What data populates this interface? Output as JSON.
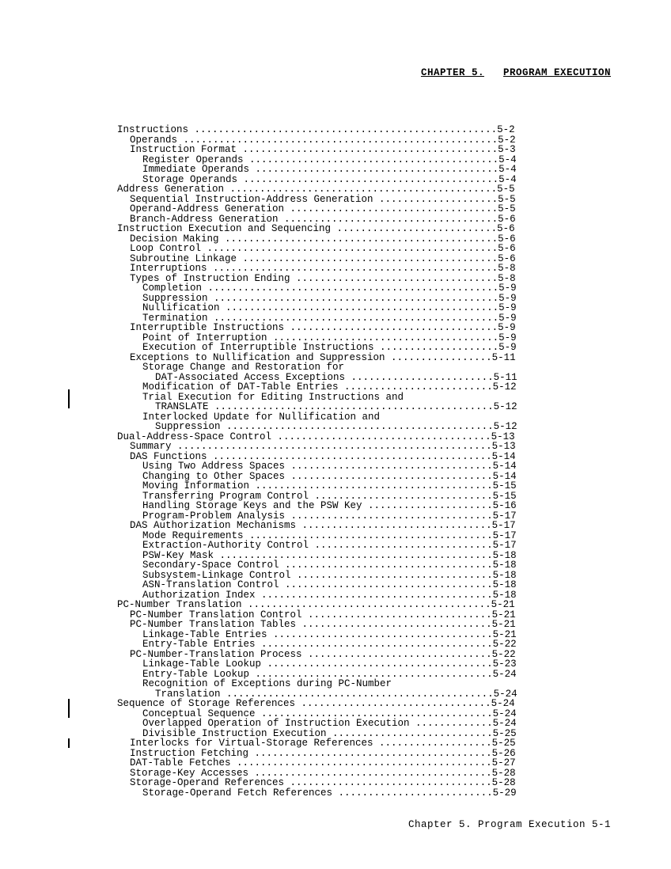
{
  "header": {
    "chapter_label": "CHAPTER 5.",
    "chapter_title": "PROGRAM EXECUTION"
  },
  "toc": {
    "line_width_chars": 67,
    "entries": [
      {
        "label": "Instructions",
        "page": "5-2",
        "level": 0
      },
      {
        "label": "Operands",
        "page": "5-2",
        "level": 1
      },
      {
        "label": "Instruction Format",
        "page": "5-3",
        "level": 1
      },
      {
        "label": "Register Operands",
        "page": "5-4",
        "level": 2
      },
      {
        "label": "Immediate Operands",
        "page": "5-4",
        "level": 2
      },
      {
        "label": "Storage Operands",
        "page": "5-4",
        "level": 2
      },
      {
        "label": "Address Generation",
        "page": "5-5",
        "level": 0
      },
      {
        "label": "Sequential Instruction-Address Generation",
        "page": "5-5",
        "level": 1
      },
      {
        "label": "Operand-Address Generation",
        "page": "5-5",
        "level": 1
      },
      {
        "label": "Branch-Address Generation",
        "page": "5-6",
        "level": 1
      },
      {
        "label": "Instruction Execution and Sequencing",
        "page": "5-6",
        "level": 0
      },
      {
        "label": "Decision Making",
        "page": "5-6",
        "level": 1
      },
      {
        "label": "Loop Control",
        "page": "5-6",
        "level": 1
      },
      {
        "label": "Subroutine Linkage",
        "page": "5-6",
        "level": 1
      },
      {
        "label": "Interruptions",
        "page": "5-8",
        "level": 1
      },
      {
        "label": "Types of Instruction Ending",
        "page": "5-8",
        "level": 1
      },
      {
        "label": "Completion",
        "page": "5-9",
        "level": 2
      },
      {
        "label": "Suppression",
        "page": "5-9",
        "level": 2
      },
      {
        "label": "Nullification",
        "page": "5-9",
        "level": 2
      },
      {
        "label": "Termination",
        "page": "5-9",
        "level": 2
      },
      {
        "label": "Interruptible Instructions",
        "page": "5-9",
        "level": 1
      },
      {
        "label": "Point of Interruption",
        "page": "5-9",
        "level": 2
      },
      {
        "label": "Execution of Interruptible Instructions",
        "page": "5-9",
        "level": 2
      },
      {
        "label": "Exceptions to Nullification and Suppression",
        "page": "5-11",
        "level": 1
      },
      {
        "label": "Storage Change and Restoration for",
        "page": "",
        "level": 2,
        "nopage": true
      },
      {
        "label": "DAT-Associated Access Exceptions",
        "page": "5-11",
        "level": 3
      },
      {
        "label": "Modification of DAT-Table Entries",
        "page": "5-12",
        "level": 2
      },
      {
        "label": "Trial Execution for Editing Instructions and",
        "page": "",
        "level": 2,
        "nopage": true
      },
      {
        "label": "TRANSLATE",
        "page": "5-12",
        "level": 3
      },
      {
        "label": "Interlocked Update for Nullification and",
        "page": "",
        "level": 2,
        "nopage": true
      },
      {
        "label": "Suppression",
        "page": "5-12",
        "level": 3
      },
      {
        "label": "Dual-Address-Space Control",
        "page": "5-13",
        "level": 0
      },
      {
        "label": "Summary",
        "page": "5-13",
        "level": 1
      },
      {
        "label": "DAS Functions",
        "page": "5-14",
        "level": 1
      },
      {
        "label": "Using Two Address Spaces",
        "page": "5-14",
        "level": 2
      },
      {
        "label": "Changing to Other Spaces",
        "page": "5-14",
        "level": 2
      },
      {
        "label": "Moving Information",
        "page": "5-15",
        "level": 2
      },
      {
        "label": "Transferring Program Control",
        "page": "5-15",
        "level": 2
      },
      {
        "label": "Handling Storage Keys and the PSW Key",
        "page": "5-16",
        "level": 2
      },
      {
        "label": "Program-Problem Analysis",
        "page": "5-17",
        "level": 2
      },
      {
        "label": "DAS Authorization Mechanisms",
        "page": "5-17",
        "level": 1
      },
      {
        "label": "Mode Requirements",
        "page": "5-17",
        "level": 2
      },
      {
        "label": "Extraction-Authority Control",
        "page": "5-17",
        "level": 2
      },
      {
        "label": "PSW-Key Mask",
        "page": "5-18",
        "level": 2
      },
      {
        "label": "Secondary-Space Control",
        "page": "5-18",
        "level": 2
      },
      {
        "label": "Subsystem-Linkage Control",
        "page": "5-18",
        "level": 2
      },
      {
        "label": "ASN-Translation Control",
        "page": "5-18",
        "level": 2
      },
      {
        "label": "Authorization Index",
        "page": "5-18",
        "level": 2
      },
      {
        "label": "PC-Number Translation",
        "page": "5-21",
        "level": 0
      },
      {
        "label": "PC-Number Translation Control",
        "page": "5-21",
        "level": 1
      },
      {
        "label": "PC-Number Translation Tables",
        "page": "5-21",
        "level": 1
      },
      {
        "label": "Linkage-Table Entries",
        "page": "5-21",
        "level": 2
      },
      {
        "label": "Entry-Table Entries",
        "page": "5-22",
        "level": 2
      },
      {
        "label": "PC-Number-Translation Process",
        "page": "5-22",
        "level": 1
      },
      {
        "label": "Linkage-Table Lookup",
        "page": "5-23",
        "level": 2
      },
      {
        "label": "Entry-Table Lookup",
        "page": "5-24",
        "level": 2
      },
      {
        "label": "Recognition of Exceptions during PC-Number",
        "page": "",
        "level": 2,
        "nopage": true
      },
      {
        "label": "Translation",
        "page": "5-24",
        "level": 3
      },
      {
        "label": "Sequence of Storage References",
        "page": "5-24",
        "level": 0
      },
      {
        "label": "Conceptual Sequence",
        "page": "5-24",
        "level": 2
      },
      {
        "label": "Overlapped Operation of Instruction Execution",
        "page": "5-24",
        "level": 2
      },
      {
        "label": "Divisible Instruction Execution",
        "page": "5-25",
        "level": 2
      },
      {
        "label": "Interlocks for Virtual-Storage References",
        "page": "5-25",
        "level": 1
      },
      {
        "label": "Instruction Fetching",
        "page": "5-26",
        "level": 1
      },
      {
        "label": "DAT-Table Fetches",
        "page": "5-27",
        "level": 1
      },
      {
        "label": "Storage-Key Accesses",
        "page": "5-28",
        "level": 1
      },
      {
        "label": "Storage-Operand References",
        "page": "5-28",
        "level": 1
      },
      {
        "label": "Storage-Operand Fetch References",
        "page": "5-29",
        "level": 2
      }
    ]
  },
  "footer": {
    "text": "Chapter 5. Program Execution  5-1"
  }
}
